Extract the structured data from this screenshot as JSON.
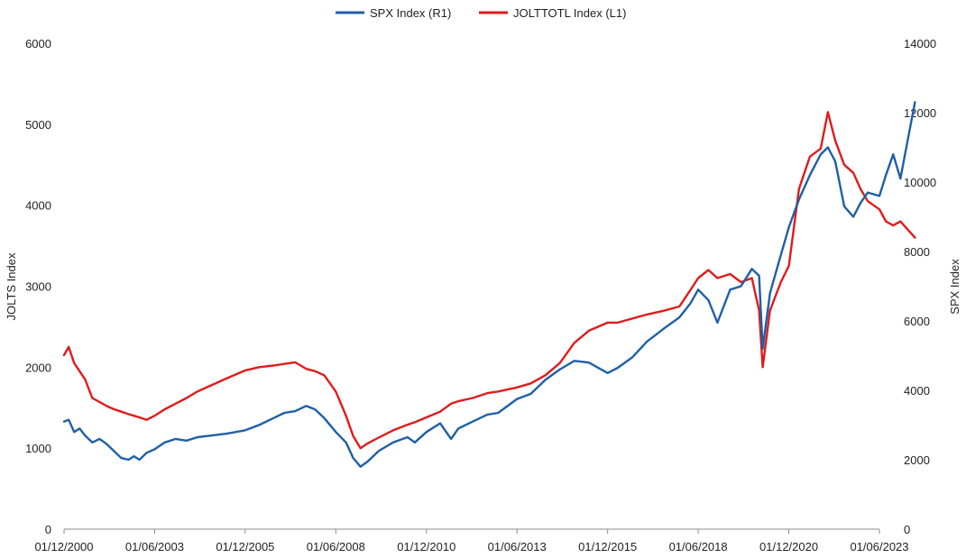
{
  "chart_data": {
    "type": "line",
    "title": "",
    "xlabel": "",
    "y_left_label": "JOLTS Index",
    "y_right_label": "SPX Index",
    "y_left_lim": [
      0,
      6000
    ],
    "y_right_lim": [
      0,
      14000
    ],
    "y_left_ticks": [
      "0",
      "1000",
      "2000",
      "3000",
      "4000",
      "5000",
      "6000"
    ],
    "y_right_ticks": [
      "0",
      "2000",
      "4000",
      "6000",
      "8000",
      "10000",
      "12000",
      "14000"
    ],
    "x_ticks": [
      "01/12/2000",
      "01/06/2003",
      "01/12/2005",
      "01/06/2008",
      "01/12/2010",
      "01/06/2013",
      "01/12/2015",
      "01/06/2018",
      "01/12/2020",
      "01/06/2023"
    ],
    "x_tick_years": [
      2000.92,
      2003.42,
      2005.92,
      2008.42,
      2010.92,
      2013.42,
      2015.92,
      2018.42,
      2020.92,
      2023.42
    ],
    "x_range": [
      2000.92,
      2023.42
    ],
    "grid": false,
    "legend_position": "top-center",
    "colors": {
      "spx": "#1f5fa8",
      "jolts": "#e01b1b"
    },
    "series": [
      {
        "name": "SPX Index  (R1)",
        "axis": "right",
        "color": "#1f5fa8",
        "x": [
          2000.92,
          2001.05,
          2001.2,
          2001.35,
          2001.5,
          2001.7,
          2001.9,
          2002.1,
          2002.3,
          2002.5,
          2002.7,
          2002.85,
          2003.0,
          2003.2,
          2003.42,
          2003.7,
          2004.0,
          2004.3,
          2004.6,
          2005.0,
          2005.4,
          2005.92,
          2006.3,
          2006.7,
          2007.0,
          2007.3,
          2007.6,
          2007.85,
          2008.1,
          2008.42,
          2008.7,
          2008.9,
          2009.1,
          2009.3,
          2009.6,
          2010.0,
          2010.4,
          2010.6,
          2010.92,
          2011.3,
          2011.6,
          2011.8,
          2012.2,
          2012.6,
          2012.9,
          2013.42,
          2013.8,
          2014.2,
          2014.6,
          2015.0,
          2015.4,
          2015.92,
          2016.2,
          2016.6,
          2017.0,
          2017.5,
          2017.9,
          2018.2,
          2018.42,
          2018.7,
          2018.95,
          2019.3,
          2019.6,
          2019.9,
          2020.1,
          2020.2,
          2020.4,
          2020.7,
          2020.92,
          2021.2,
          2021.5,
          2021.8,
          2022.0,
          2022.2,
          2022.45,
          2022.7,
          2022.9,
          2023.1,
          2023.42,
          2023.6,
          2023.8,
          2024.0,
          2024.2,
          2024.4
        ],
        "values": [
          3100,
          3150,
          2800,
          2900,
          2700,
          2500,
          2600,
          2450,
          2250,
          2050,
          2000,
          2100,
          2000,
          2200,
          2300,
          2500,
          2600,
          2550,
          2650,
          2700,
          2750,
          2850,
          3000,
          3200,
          3350,
          3400,
          3550,
          3450,
          3200,
          2800,
          2500,
          2050,
          1800,
          1950,
          2250,
          2500,
          2650,
          2500,
          2800,
          3050,
          2600,
          2900,
          3100,
          3300,
          3350,
          3750,
          3900,
          4300,
          4600,
          4850,
          4800,
          4500,
          4650,
          4950,
          5400,
          5800,
          6100,
          6500,
          6900,
          6600,
          5950,
          6900,
          7000,
          7500,
          7300,
          5200,
          6800,
          7900,
          8700,
          9500,
          10200,
          10800,
          11000,
          10600,
          9300,
          9000,
          9400,
          9700,
          9600,
          10200,
          10800,
          10100,
          11200,
          12300
        ]
      },
      {
        "name": "JOLTTOTL Index  (L1)",
        "axis": "left",
        "color": "#e01b1b",
        "x": [
          2000.92,
          2001.05,
          2001.2,
          2001.35,
          2001.5,
          2001.7,
          2001.9,
          2002.1,
          2002.3,
          2002.5,
          2002.7,
          2002.85,
          2003.0,
          2003.2,
          2003.42,
          2003.7,
          2004.0,
          2004.3,
          2004.6,
          2005.0,
          2005.4,
          2005.92,
          2006.3,
          2006.7,
          2007.0,
          2007.3,
          2007.6,
          2007.85,
          2008.1,
          2008.42,
          2008.7,
          2008.9,
          2009.1,
          2009.3,
          2009.6,
          2010.0,
          2010.4,
          2010.6,
          2010.92,
          2011.3,
          2011.6,
          2011.8,
          2012.2,
          2012.6,
          2012.9,
          2013.42,
          2013.8,
          2014.2,
          2014.6,
          2015.0,
          2015.4,
          2015.92,
          2016.2,
          2016.6,
          2017.0,
          2017.5,
          2017.9,
          2018.2,
          2018.42,
          2018.7,
          2018.95,
          2019.3,
          2019.6,
          2019.9,
          2020.1,
          2020.2,
          2020.4,
          2020.7,
          2020.92,
          2021.2,
          2021.5,
          2021.8,
          2022.0,
          2022.2,
          2022.45,
          2022.7,
          2022.9,
          2023.1,
          2023.42,
          2023.6,
          2023.8,
          2024.0,
          2024.2,
          2024.4
        ],
        "values": [
          2150,
          2250,
          2050,
          1950,
          1850,
          1620,
          1570,
          1520,
          1480,
          1450,
          1420,
          1400,
          1380,
          1350,
          1400,
          1480,
          1550,
          1620,
          1700,
          1780,
          1860,
          1960,
          2000,
          2020,
          2040,
          2060,
          1980,
          1950,
          1900,
          1700,
          1400,
          1150,
          1000,
          1060,
          1130,
          1220,
          1290,
          1320,
          1380,
          1450,
          1550,
          1580,
          1620,
          1680,
          1700,
          1750,
          1800,
          1900,
          2050,
          2300,
          2450,
          2550,
          2550,
          2600,
          2650,
          2700,
          2750,
          2950,
          3100,
          3200,
          3100,
          3150,
          3050,
          3100,
          2700,
          2000,
          2700,
          3050,
          3250,
          4200,
          4600,
          4700,
          5150,
          4800,
          4500,
          4400,
          4200,
          4050,
          3950,
          3800,
          3750,
          3800,
          3700,
          3600
        ]
      }
    ]
  }
}
